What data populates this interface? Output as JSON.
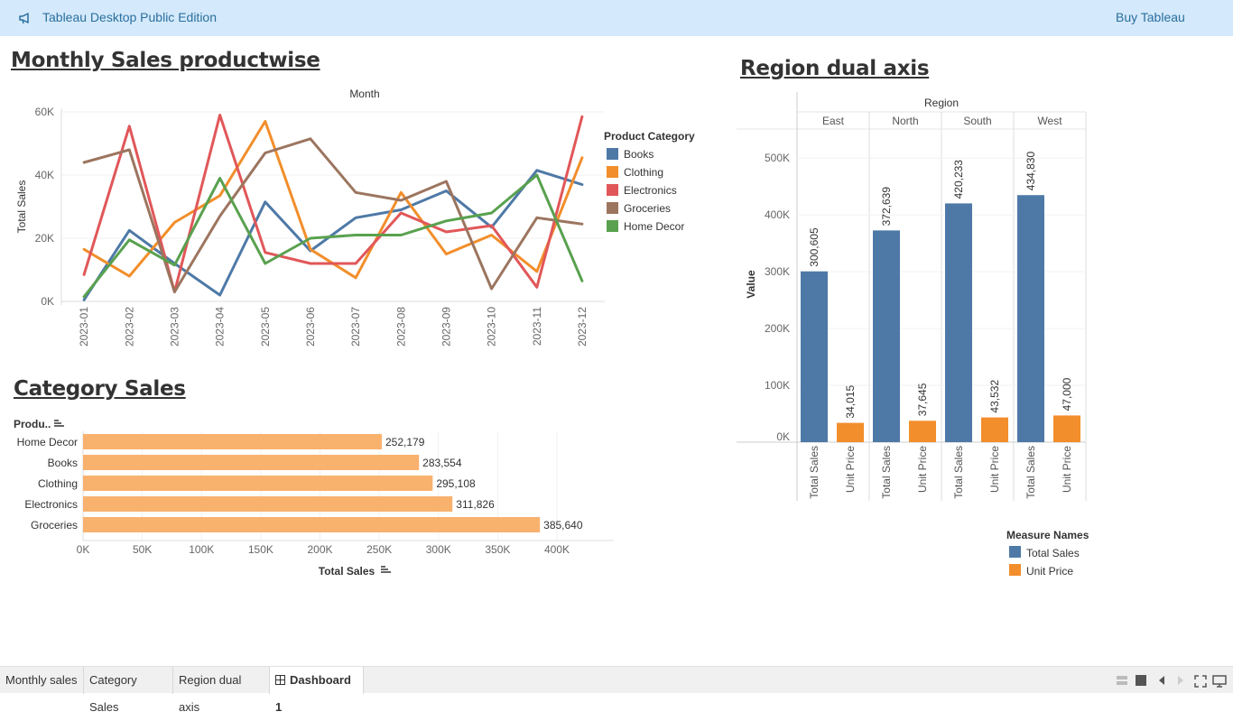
{
  "topbar": {
    "title": "Tableau Desktop Public Edition",
    "buy_label": "Buy Tableau",
    "logo_icon": "megaphone-icon"
  },
  "titles": {
    "monthly": "Monthly Sales productwise",
    "category": "Category Sales",
    "region": "Region dual axis"
  },
  "tabs": [
    {
      "label": "Monthly sales"
    },
    {
      "label": "Category Sales"
    },
    {
      "label": "Region dual axis"
    },
    {
      "label": "Dashboard 1",
      "active": true
    }
  ],
  "colors": {
    "books": "#4e79a7",
    "clothing": "#f28e2b",
    "electronics": "#e15759",
    "groceries": "#9c755f",
    "home_decor": "#59a14f",
    "category_bar": "#f9b16e",
    "total_sales": "#4e79a7",
    "unit_price": "#f28e2b"
  },
  "chart_data": [
    {
      "type": "line",
      "title": "Monthly Sales productwise",
      "xlabel": "Month",
      "ylabel": "Total Sales",
      "x": [
        "2023-01",
        "2023-02",
        "2023-03",
        "2023-04",
        "2023-05",
        "2023-06",
        "2023-07",
        "2023-08",
        "2023-09",
        "2023-10",
        "2023-11",
        "2023-12"
      ],
      "ylim": [
        0,
        60000
      ],
      "yticks": [
        "0K",
        "20K",
        "40K",
        "60K"
      ],
      "legend_title": "Product Category",
      "legend_position": "right",
      "series": [
        {
          "name": "Books",
          "color": "#4e79a7",
          "values": [
            500,
            22500,
            12000,
            2000,
            31500,
            16000,
            26500,
            29000,
            35000,
            23500,
            41500,
            37000
          ]
        },
        {
          "name": "Clothing",
          "color": "#f28e2b",
          "values": [
            16500,
            8000,
            25000,
            33500,
            57000,
            16500,
            7500,
            34500,
            15000,
            21000,
            9500,
            45500
          ]
        },
        {
          "name": "Electronics",
          "color": "#e15759",
          "values": [
            8500,
            55500,
            3000,
            59000,
            15500,
            12000,
            12000,
            28000,
            22000,
            24000,
            4500,
            58500
          ]
        },
        {
          "name": "Groceries",
          "color": "#9c755f",
          "values": [
            44000,
            48000,
            3000,
            27000,
            47000,
            51500,
            34500,
            32000,
            38000,
            4000,
            26500,
            24500
          ]
        },
        {
          "name": "Home Decor",
          "color": "#59a14f",
          "values": [
            1500,
            19500,
            11500,
            39000,
            12000,
            20000,
            21000,
            21000,
            25500,
            28000,
            40000,
            6500
          ]
        }
      ]
    },
    {
      "type": "bar",
      "orientation": "horizontal",
      "title": "Category Sales",
      "ylabel": "Produ..",
      "xlabel": "Total Sales",
      "categories": [
        "Home Decor",
        "Books",
        "Clothing",
        "Electronics",
        "Groceries"
      ],
      "values": [
        252179,
        283554,
        295108,
        311826,
        385640
      ],
      "value_labels": [
        "252,179",
        "283,554",
        "295,108",
        "311,826",
        "385,640"
      ],
      "xlim": [
        0,
        430000
      ],
      "xticks": [
        "0K",
        "50K",
        "100K",
        "150K",
        "200K",
        "250K",
        "300K",
        "350K",
        "400K"
      ]
    },
    {
      "type": "bar",
      "title": "Region dual axis",
      "column_header": "Region",
      "regions": [
        "East",
        "North",
        "South",
        "West"
      ],
      "measures": [
        "Total Sales",
        "Unit Price"
      ],
      "ylabel": "Value",
      "ylim": [
        0,
        540000
      ],
      "yticks": [
        "0K",
        "100K",
        "200K",
        "300K",
        "400K",
        "500K"
      ],
      "series": [
        {
          "name": "Total Sales",
          "color": "#4e79a7",
          "values": [
            300605,
            372639,
            420233,
            434830
          ],
          "labels": [
            "300,605",
            "372,639",
            "420,233",
            "434,830"
          ]
        },
        {
          "name": "Unit Price",
          "color": "#f28e2b",
          "values": [
            34015,
            37645,
            43532,
            47000
          ],
          "labels": [
            "34,015",
            "37,645",
            "43,532",
            "47,000"
          ]
        }
      ],
      "legend_title": "Measure Names",
      "legend_position": "bottom-right"
    }
  ]
}
